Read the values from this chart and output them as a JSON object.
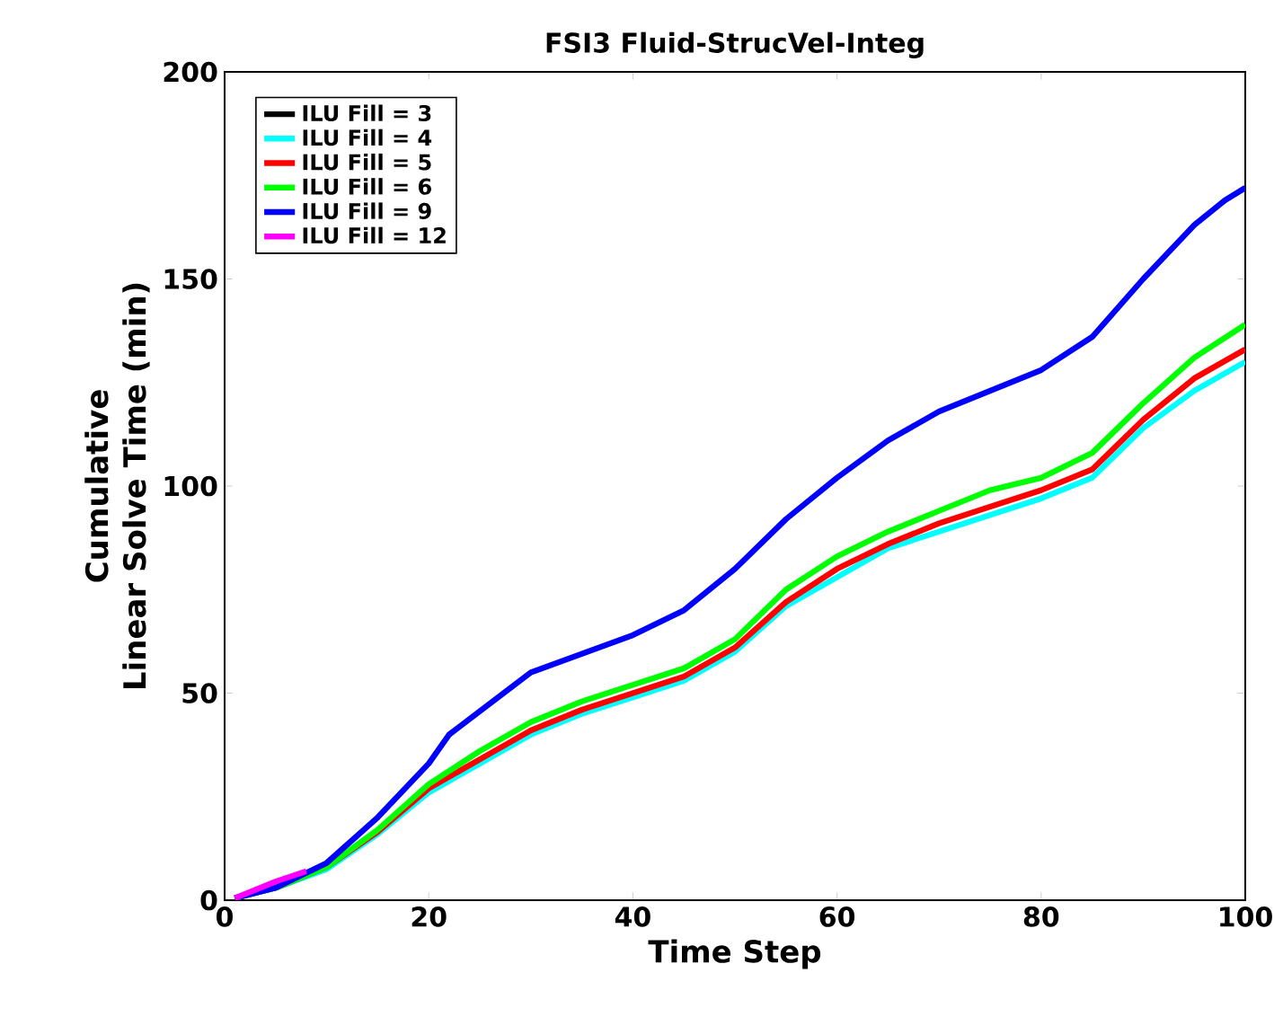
{
  "chart_data": {
    "type": "line",
    "title": "FSI3 Fluid-StrucVel-Integ",
    "xlabel": "Time Step",
    "ylabel": "Cumulative\nLinear Solve Time (min)",
    "xlim": [
      0,
      100
    ],
    "xticks": [
      0,
      20,
      40,
      60,
      80,
      100
    ],
    "ylim": [
      0,
      200
    ],
    "yticks": [
      0,
      50,
      100,
      150,
      200
    ],
    "legend": "top left",
    "grid": false,
    "marker": "none",
    "line_style": "solid",
    "series": [
      {
        "name": "ILU Fill = 3",
        "color": "#000000"
      },
      {
        "name": "ILU Fill = 4",
        "color": "#00ffff",
        "x": [
          1,
          5,
          10,
          15,
          20,
          25,
          30,
          35,
          40,
          45,
          50,
          55,
          60,
          65,
          70,
          75,
          80,
          85,
          90,
          95,
          100
        ],
        "values": [
          0.5,
          3,
          7.5,
          16,
          26,
          33,
          40,
          45,
          49,
          53,
          60,
          71,
          78,
          85,
          89,
          93,
          97,
          102,
          114,
          123,
          130
        ]
      },
      {
        "name": "ILU Fill = 5",
        "color": "#ff0000",
        "x": [
          1,
          5,
          10,
          15,
          20,
          25,
          30,
          35,
          40,
          45,
          50,
          55,
          60,
          65,
          70,
          75,
          80,
          85,
          90,
          95,
          100
        ],
        "values": [
          0.5,
          3,
          8,
          16.5,
          27,
          34,
          41,
          46,
          50,
          54,
          61,
          72,
          80,
          86,
          91,
          95,
          99,
          104,
          116,
          126,
          133
        ]
      },
      {
        "name": "ILU Fill = 6",
        "color": "#00ff00",
        "x": [
          1,
          5,
          10,
          15,
          20,
          25,
          30,
          35,
          40,
          45,
          50,
          55,
          60,
          65,
          70,
          75,
          80,
          85,
          90,
          95,
          100
        ],
        "values": [
          0.5,
          3,
          8,
          17,
          28,
          36,
          43,
          48,
          52,
          56,
          63,
          75,
          83,
          89,
          94,
          99,
          102,
          108,
          120,
          131,
          139
        ]
      },
      {
        "name": "ILU Fill = 9",
        "color": "#0000ff",
        "x": [
          1,
          5,
          10,
          15,
          20,
          22,
          30,
          40,
          45,
          50,
          55,
          60,
          65,
          70,
          75,
          80,
          85,
          90,
          95,
          98,
          100
        ],
        "values": [
          0.5,
          3,
          9,
          20,
          33,
          40,
          55,
          64,
          70,
          80,
          92,
          102,
          111,
          118,
          123,
          128,
          136,
          150,
          163,
          169,
          172
        ]
      },
      {
        "name": "ILU Fill = 12",
        "color": "#ff00ff",
        "x": [
          1,
          3,
          5,
          8
        ],
        "values": [
          0.5,
          2.5,
          4.5,
          7
        ]
      }
    ]
  }
}
